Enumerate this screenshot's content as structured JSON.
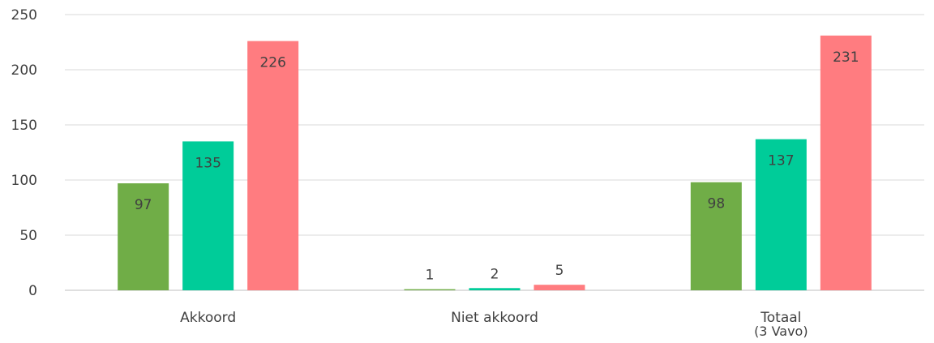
{
  "chart_data": {
    "type": "bar",
    "categories": [
      {
        "lines": [
          "Akkoord"
        ]
      },
      {
        "lines": [
          "Niet akkoord"
        ]
      },
      {
        "lines": [
          "Totaal",
          "(3 Vavo)"
        ]
      }
    ],
    "series": [
      {
        "color": "#70ad47",
        "values": [
          97,
          1,
          98
        ]
      },
      {
        "color": "#00cc99",
        "values": [
          135,
          2,
          137
        ]
      },
      {
        "color": "#ff7c80",
        "values": [
          226,
          5,
          231
        ]
      }
    ],
    "ylim": [
      0,
      250
    ],
    "yticks": [
      0,
      50,
      100,
      150,
      200,
      250
    ],
    "grid": true,
    "legend": "none"
  }
}
